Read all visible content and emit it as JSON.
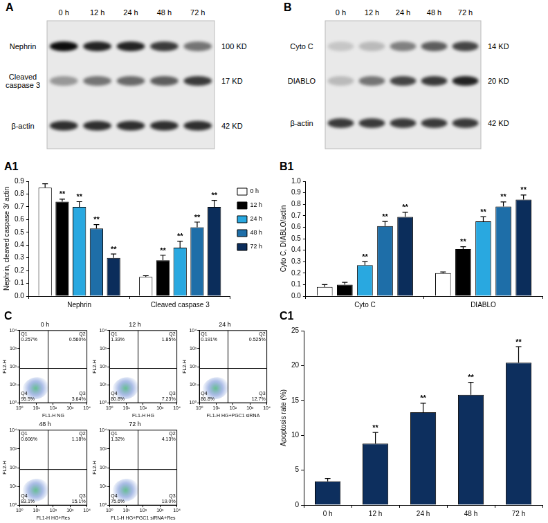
{
  "blots": [
    {
      "panel": "A",
      "lanes": [
        "0 h",
        "12 h",
        "24 h",
        "48 h",
        "72 h"
      ],
      "bands": [
        {
          "name": "Nephrin",
          "size": "100 KD",
          "intensity": [
            0.95,
            0.85,
            0.85,
            0.75,
            0.5
          ]
        },
        {
          "name": "Cleaved caspase 3",
          "size": "17 KD",
          "intensity": [
            0.35,
            0.5,
            0.55,
            0.6,
            0.75
          ]
        },
        {
          "name": "β-actin",
          "size": "42 KD",
          "intensity": [
            0.8,
            0.8,
            0.8,
            0.8,
            0.8
          ]
        }
      ]
    },
    {
      "panel": "B",
      "lanes": [
        "0 h",
        "12 h",
        "24 h",
        "48 h",
        "72 h"
      ],
      "bands": [
        {
          "name": "Cyto C",
          "size": "14 KD",
          "intensity": [
            0.15,
            0.2,
            0.45,
            0.6,
            0.7
          ]
        },
        {
          "name": "DIABLO",
          "size": "20 KD",
          "intensity": [
            0.2,
            0.5,
            0.7,
            0.75,
            0.85
          ]
        },
        {
          "name": "β-actin",
          "size": "42 KD",
          "intensity": [
            0.75,
            0.75,
            0.75,
            0.75,
            0.75
          ]
        }
      ]
    }
  ],
  "chart_data": [
    {
      "type": "bar",
      "panel": "A1",
      "y_label": "Nephrin, cleaved caspase 3/ actin",
      "categories": [
        "Nephrin",
        "Cleaved caspase 3"
      ],
      "series": [
        {
          "name": "0 h",
          "color": "#ffffff",
          "values": [
            0.85,
            0.15
          ],
          "errors": [
            0.03,
            0.01
          ],
          "significance": [
            null,
            null
          ]
        },
        {
          "name": "12 h",
          "color": "#000000",
          "values": [
            0.74,
            0.28
          ],
          "errors": [
            0.02,
            0.04
          ],
          "significance": [
            "**",
            "**"
          ]
        },
        {
          "name": "24 h",
          "color": "#29a8e0",
          "values": [
            0.7,
            0.38
          ],
          "errors": [
            0.04,
            0.05
          ],
          "significance": [
            "**",
            "**"
          ]
        },
        {
          "name": "48 h",
          "color": "#1e6ea8",
          "values": [
            0.53,
            0.54
          ],
          "errors": [
            0.03,
            0.04
          ],
          "significance": [
            "**",
            "**"
          ]
        },
        {
          "name": "72 h",
          "color": "#0b2d5b",
          "values": [
            0.3,
            0.7
          ],
          "errors": [
            0.03,
            0.05
          ],
          "significance": [
            "**",
            "**"
          ]
        }
      ],
      "ylim": [
        0,
        0.9
      ],
      "yticks": [
        {
          "value": 0,
          "label": "0.0"
        },
        0.1,
        0.2,
        0.3,
        0.4,
        0.5,
        0.6,
        0.7,
        0.8,
        0.9
      ],
      "legend": "upper right"
    },
    {
      "type": "bar",
      "panel": "B1",
      "y_label": "Cyto C, DIABLO/actin",
      "categories": [
        "Cyto C",
        "DIABLO"
      ],
      "series": [
        {
          "name": "0 h",
          "color": "#ffffff",
          "values": [
            0.08,
            0.2
          ],
          "errors": [
            0.02,
            0.01
          ],
          "significance": [
            null,
            null
          ]
        },
        {
          "name": "12 h",
          "color": "#000000",
          "values": [
            0.1,
            0.41
          ],
          "errors": [
            0.02,
            0.02
          ],
          "significance": [
            null,
            "**"
          ]
        },
        {
          "name": "24 h",
          "color": "#29a8e0",
          "values": [
            0.27,
            0.65
          ],
          "errors": [
            0.03,
            0.04
          ],
          "significance": [
            "**",
            "**"
          ]
        },
        {
          "name": "48 h",
          "color": "#1e6ea8",
          "values": [
            0.61,
            0.78
          ],
          "errors": [
            0.04,
            0.04
          ],
          "significance": [
            "**",
            "**"
          ]
        },
        {
          "name": "72 h",
          "color": "#0b2d5b",
          "values": [
            0.69,
            0.84
          ],
          "errors": [
            0.04,
            0.04
          ],
          "significance": [
            "**",
            "**"
          ]
        }
      ],
      "ylim": [
        0,
        1.0
      ],
      "yticks": [
        {
          "value": 0,
          "label": "0.0"
        },
        0.1,
        0.2,
        0.3,
        0.4,
        0.5,
        0.6,
        0.7,
        0.8,
        0.9,
        {
          "value": 1,
          "label": "1.0"
        }
      ]
    },
    {
      "type": "scatter",
      "panel": "C",
      "title": "0 h",
      "x_label": "FL1-H NG",
      "y_label": "FL2-H",
      "log": true,
      "xlim": [
        1,
        10000
      ],
      "ylim": [
        1,
        10000
      ],
      "xticks": [
        {
          "value": 1,
          "label": "10⁰"
        },
        {
          "value": 10,
          "label": "10¹"
        },
        {
          "value": 100,
          "label": "10²"
        },
        {
          "value": 1000,
          "label": "10³"
        },
        {
          "value": 10000,
          "label": "10⁴"
        }
      ],
      "yticks": [
        {
          "value": 1,
          "label": "10⁰"
        },
        {
          "value": 10,
          "label": "10¹"
        },
        {
          "value": 100,
          "label": "10²"
        },
        {
          "value": 1000,
          "label": "10³"
        },
        {
          "value": 10000,
          "label": "10⁴"
        }
      ],
      "gate": {
        "x": 50,
        "y": 80
      },
      "quadrants": [
        {
          "name": "Q1",
          "value": 0.257,
          "label": "0.257%"
        },
        {
          "name": "Q2",
          "value": 0.56,
          "label": "0.560%"
        },
        {
          "name": "Q3",
          "value": 3.64,
          "label": "3.64%"
        },
        {
          "name": "Q4",
          "value": 95.5,
          "label": "95.5%"
        }
      ]
    },
    {
      "type": "scatter",
      "title": "12 h",
      "x_label": "FL1-H HG",
      "y_label": "FL2-H",
      "log": true,
      "xlim": [
        1,
        10000
      ],
      "ylim": [
        1,
        10000
      ],
      "xticks": [
        {
          "value": 1,
          "label": "10⁰"
        },
        {
          "value": 10,
          "label": "10¹"
        },
        {
          "value": 100,
          "label": "10²"
        },
        {
          "value": 1000,
          "label": "10³"
        },
        {
          "value": 10000,
          "label": "10⁴"
        }
      ],
      "yticks": [
        {
          "value": 1,
          "label": "10⁰"
        },
        {
          "value": 10,
          "label": "10¹"
        },
        {
          "value": 100,
          "label": "10²"
        },
        {
          "value": 1000,
          "label": "10³"
        },
        {
          "value": 10000,
          "label": "10⁴"
        }
      ],
      "gate": {
        "x": 50,
        "y": 80
      },
      "quadrants": [
        {
          "name": "Q1",
          "value": 1.33,
          "label": "1.33%"
        },
        {
          "name": "Q2",
          "value": 1.85,
          "label": "1.85%"
        },
        {
          "name": "Q3",
          "value": 7.23,
          "label": "7.23%"
        },
        {
          "name": "Q4",
          "value": 80.8,
          "label": "80.8%"
        }
      ]
    },
    {
      "type": "scatter",
      "title": "24 h",
      "x_label": "FL1-H HG+PGC1 siRNA",
      "y_label": "FL2-H",
      "log": true,
      "xlim": [
        1,
        10000
      ],
      "ylim": [
        1,
        10000
      ],
      "xticks": [
        {
          "value": 1,
          "label": "10⁰"
        },
        {
          "value": 10,
          "label": "10¹"
        },
        {
          "value": 100,
          "label": "10²"
        },
        {
          "value": 1000,
          "label": "10³"
        },
        {
          "value": 10000,
          "label": "10⁴"
        }
      ],
      "yticks": [
        {
          "value": 1,
          "label": "10⁰"
        },
        {
          "value": 10,
          "label": "10¹"
        },
        {
          "value": 100,
          "label": "10²"
        },
        {
          "value": 1000,
          "label": "10³"
        },
        {
          "value": 10000,
          "label": "10⁴"
        }
      ],
      "gate": {
        "x": 50,
        "y": 80
      },
      "quadrants": [
        {
          "name": "Q1",
          "value": 0.191,
          "label": "0.191%"
        },
        {
          "name": "Q2",
          "value": 0.525,
          "label": "0.525%"
        },
        {
          "name": "Q3",
          "value": 12.7,
          "label": "12.7%"
        },
        {
          "name": "Q4",
          "value": 86.8,
          "label": "86.8%"
        }
      ]
    },
    {
      "type": "scatter",
      "title": "48 h",
      "x_label": "FL1-H HG+Res",
      "y_label": "FL2-H",
      "log": true,
      "xlim": [
        1,
        10000
      ],
      "ylim": [
        1,
        10000
      ],
      "xticks": [
        {
          "value": 1,
          "label": "10⁰"
        },
        {
          "value": 10,
          "label": "10¹"
        },
        {
          "value": 100,
          "label": "10²"
        },
        {
          "value": 1000,
          "label": "10³"
        },
        {
          "value": 10000,
          "label": "10⁴"
        }
      ],
      "yticks": [
        {
          "value": 1,
          "label": "10⁰"
        },
        {
          "value": 10,
          "label": "10¹"
        },
        {
          "value": 100,
          "label": "10²"
        },
        {
          "value": 1000,
          "label": "10³"
        },
        {
          "value": 10000,
          "label": "10⁴"
        }
      ],
      "gate": {
        "x": 50,
        "y": 80
      },
      "quadrants": [
        {
          "name": "Q1",
          "value": 0.606,
          "label": "0.606%"
        },
        {
          "name": "Q2",
          "value": 1.18,
          "label": "1.18%"
        },
        {
          "name": "Q3",
          "value": 15.1,
          "label": "15.1%"
        },
        {
          "name": "Q4",
          "value": 83.1,
          "label": "83.1%"
        }
      ]
    },
    {
      "type": "scatter",
      "title": "72 h",
      "x_label": "FL1-H HG+PGC1 siRNA+Res",
      "y_label": "FL2-H",
      "log": true,
      "xlim": [
        1,
        10000
      ],
      "ylim": [
        1,
        10000
      ],
      "xticks": [
        {
          "value": 1,
          "label": "10⁰"
        },
        {
          "value": 10,
          "label": "10¹"
        },
        {
          "value": 100,
          "label": "10²"
        },
        {
          "value": 1000,
          "label": "10³"
        },
        {
          "value": 10000,
          "label": "10⁴"
        }
      ],
      "yticks": [
        {
          "value": 1,
          "label": "10⁰"
        },
        {
          "value": 10,
          "label": "10¹"
        },
        {
          "value": 100,
          "label": "10²"
        },
        {
          "value": 1000,
          "label": "10³"
        },
        {
          "value": 10000,
          "label": "10⁴"
        }
      ],
      "gate": {
        "x": 50,
        "y": 80
      },
      "quadrants": [
        {
          "name": "Q1",
          "value": 1.32,
          "label": "1.32%"
        },
        {
          "name": "Q2",
          "value": 4.13,
          "label": "4.13%"
        },
        {
          "name": "Q3",
          "value": 19.0,
          "label": "19.0%"
        },
        {
          "name": "Q4",
          "value": 75.6,
          "label": "75.6%"
        }
      ]
    },
    {
      "type": "bar",
      "panel": "C1",
      "y_label": "Apoptosis rate (%)",
      "categories": [
        "0 h",
        "12 h",
        "24 h",
        "48 h",
        "72 h"
      ],
      "values": [
        3.4,
        8.8,
        13.3,
        15.8,
        20.4
      ],
      "errors": [
        0.4,
        1.6,
        1.3,
        1.8,
        2.3
      ],
      "significance": [
        null,
        "**",
        "**",
        "**",
        "**"
      ],
      "color": "#0d2f5e",
      "ylim": [
        0,
        25
      ],
      "yticks": [
        0,
        5,
        10,
        15,
        20,
        25
      ]
    }
  ]
}
